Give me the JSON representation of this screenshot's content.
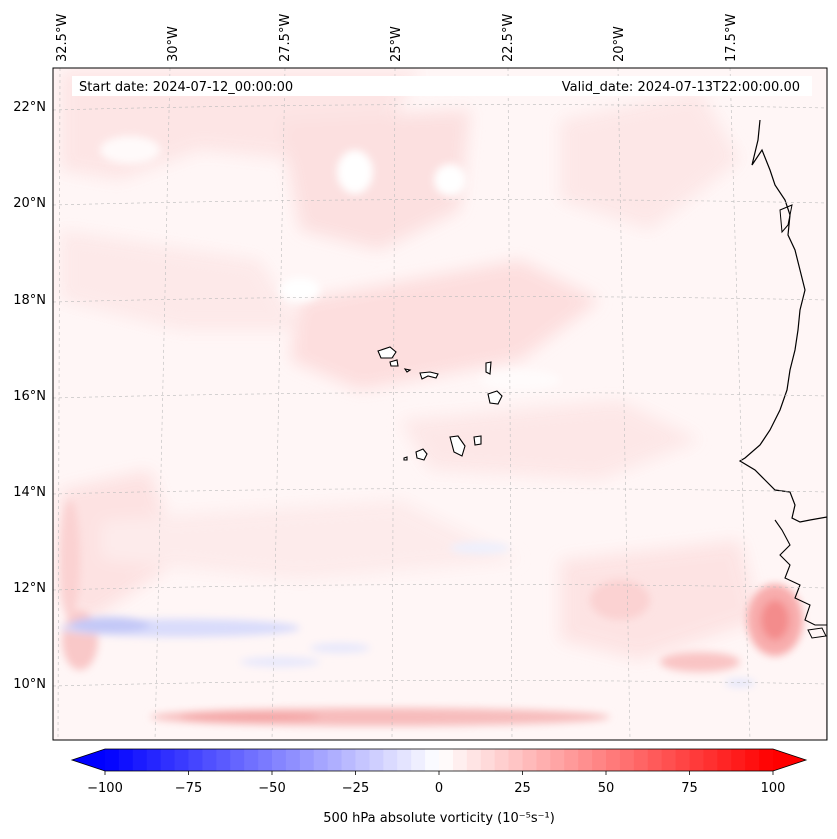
{
  "map": {
    "start_label": "Start date: 2024-07-12_00:00:00",
    "valid_label": "Valid_date: 2024-07-13T22:00:00.00",
    "lon_labels": [
      "32.5°W",
      "30°W",
      "27.5°W",
      "25°W",
      "22.5°W",
      "20°W",
      "17.5°W"
    ],
    "lat_labels": [
      "22°N",
      "20°N",
      "18°N",
      "16°N",
      "14°N",
      "12°N",
      "10°N"
    ],
    "islands": [
      "Santo Antão",
      "São Vicente",
      "Santa Luzia",
      "São Nicolau",
      "Sal",
      "Boa Vista",
      "Maio",
      "Santiago",
      "Fogo",
      "Brava"
    ]
  },
  "colorbar": {
    "label": "500 hPa absolute vorticity (10⁻⁵s⁻¹)",
    "min": -100,
    "max": 100,
    "levels": 48,
    "ticks": [
      "−100",
      "−75",
      "−50",
      "−25",
      "0",
      "25",
      "50",
      "75",
      "100"
    ],
    "colors": {
      "negative": "#0000ff",
      "neutral": "#ffffff",
      "positive": "#ff0000"
    }
  }
}
